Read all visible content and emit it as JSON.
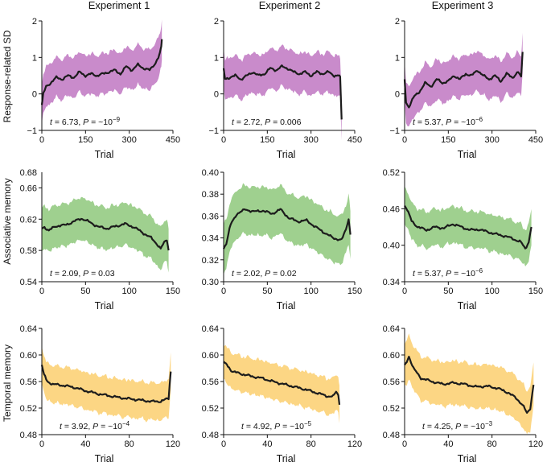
{
  "figure": {
    "column_titles": [
      "Experiment 1",
      "Experiment 2",
      "Experiment 3"
    ],
    "row_labels": [
      "Response-related SD",
      "Associative memory",
      "Temporal memory"
    ],
    "colors": {
      "row0": "#c98bcb",
      "row1": "#9fd08f",
      "row2": "#fcd684",
      "line": "#1c1c1c"
    }
  },
  "chart_data": [
    {
      "id": "p00",
      "type": "area",
      "row": 0,
      "col": 0,
      "xlabel": "Trial",
      "ylabel": "Response-related SD",
      "xlim": [
        0,
        450
      ],
      "ylim": [
        -1,
        2
      ],
      "xticks": [
        0,
        150,
        300,
        450
      ],
      "xtick_labels": [
        "0",
        "150",
        "300",
        "450"
      ],
      "yticks": [
        -1,
        0,
        1,
        2
      ],
      "ytick_labels": [
        "−1",
        "0",
        "1",
        "2"
      ],
      "stat": {
        "t_label": "t",
        "t_value": "= 6.73,",
        "p_label": "P",
        "p_value": "= ~10",
        "p_exp": "−9"
      },
      "series": {
        "name": "mean",
        "x": [
          0,
          5,
          15,
          30,
          50,
          70,
          90,
          110,
          130,
          150,
          170,
          190,
          210,
          230,
          250,
          270,
          290,
          310,
          330,
          350,
          370,
          390,
          400,
          405,
          410,
          412
        ],
        "y": [
          -0.3,
          0.0,
          0.2,
          0.3,
          0.45,
          0.4,
          0.5,
          0.45,
          0.6,
          0.5,
          0.55,
          0.5,
          0.55,
          0.6,
          0.65,
          0.55,
          0.75,
          0.65,
          0.8,
          0.7,
          0.65,
          0.85,
          1.0,
          1.1,
          1.3,
          1.5
        ],
        "band": 0.55
      }
    },
    {
      "id": "p01",
      "type": "area",
      "row": 0,
      "col": 1,
      "xlabel": "Trial",
      "ylabel": "",
      "xlim": [
        0,
        450
      ],
      "ylim": [
        -1,
        2
      ],
      "xticks": [
        0,
        150,
        300,
        450
      ],
      "xtick_labels": [
        "0",
        "150",
        "300",
        "450"
      ],
      "yticks": [
        -1,
        0,
        1,
        2
      ],
      "ytick_labels": [
        "−1",
        "0",
        "1",
        "2"
      ],
      "stat": {
        "t_label": "t",
        "t_value": "= 2.72,",
        "p_label": "P",
        "p_value": "= 0.006",
        "p_exp": ""
      },
      "series": {
        "name": "mean",
        "x": [
          0,
          5,
          20,
          40,
          60,
          80,
          100,
          120,
          140,
          160,
          180,
          200,
          220,
          240,
          260,
          280,
          300,
          320,
          340,
          360,
          380,
          395,
          400,
          405
        ],
        "y": [
          0.7,
          0.4,
          0.45,
          0.5,
          0.4,
          0.5,
          0.6,
          0.5,
          0.55,
          0.7,
          0.65,
          0.75,
          0.7,
          0.6,
          0.55,
          0.6,
          0.5,
          0.6,
          0.55,
          0.6,
          0.5,
          0.5,
          0.45,
          -0.7
        ],
        "band": 0.55
      }
    },
    {
      "id": "p02",
      "type": "area",
      "row": 0,
      "col": 2,
      "xlabel": "Trial",
      "ylabel": "",
      "xlim": [
        0,
        450
      ],
      "ylim": [
        -1,
        2
      ],
      "xticks": [
        0,
        150,
        300,
        450
      ],
      "xtick_labels": [
        "0",
        "150",
        "300",
        "450"
      ],
      "yticks": [
        -1,
        0,
        1,
        2
      ],
      "ytick_labels": [
        "−1",
        "0",
        "1",
        "2"
      ],
      "stat": {
        "t_label": "t",
        "t_value": "= 5.37,",
        "p_label": "P",
        "p_value": "= ~10",
        "p_exp": "−6"
      },
      "series": {
        "name": "mean",
        "x": [
          0,
          5,
          15,
          30,
          50,
          70,
          90,
          110,
          130,
          150,
          170,
          190,
          210,
          230,
          250,
          270,
          290,
          310,
          330,
          350,
          370,
          390,
          400,
          405
        ],
        "y": [
          0.4,
          -0.25,
          -0.35,
          -0.1,
          0.05,
          0.3,
          0.2,
          0.4,
          0.3,
          0.35,
          0.5,
          0.4,
          0.55,
          0.5,
          0.65,
          0.5,
          0.4,
          0.5,
          0.35,
          0.55,
          0.45,
          0.6,
          0.45,
          1.15
        ],
        "band": 0.55
      }
    },
    {
      "id": "p10",
      "type": "area",
      "row": 1,
      "col": 0,
      "xlabel": "Trial",
      "ylabel": "Associative memory",
      "xlim": [
        0,
        150
      ],
      "ylim": [
        0.54,
        0.68
      ],
      "xticks": [
        0,
        50,
        100,
        150
      ],
      "xtick_labels": [
        "0",
        "50",
        "100",
        "150"
      ],
      "yticks": [
        0.54,
        0.58,
        0.62,
        0.66
      ],
      "ytick_labels": [
        "0.54",
        "0.58",
        "0.62",
        "0.66"
      ],
      "top_label": "0.68",
      "stat": {
        "t_label": "t",
        "t_value": "= 2.09,",
        "p_label": "P",
        "p_value": "= 0.03",
        "p_exp": ""
      },
      "series": {
        "name": "mean",
        "x": [
          0,
          3,
          8,
          15,
          25,
          35,
          45,
          55,
          65,
          75,
          85,
          95,
          105,
          115,
          125,
          132,
          136,
          140,
          143,
          145
        ],
        "y": [
          0.608,
          0.61,
          0.605,
          0.611,
          0.612,
          0.616,
          0.621,
          0.616,
          0.61,
          0.608,
          0.611,
          0.614,
          0.61,
          0.603,
          0.596,
          0.588,
          0.582,
          0.59,
          0.594,
          0.58
        ],
        "band": 0.027
      }
    },
    {
      "id": "p11",
      "type": "area",
      "row": 1,
      "col": 1,
      "xlabel": "Trial",
      "ylabel": "",
      "xlim": [
        0,
        150
      ],
      "ylim": [
        0.3,
        0.4
      ],
      "xticks": [
        0,
        50,
        100,
        150
      ],
      "xtick_labels": [
        "0",
        "50",
        "100",
        "150"
      ],
      "yticks": [
        0.3,
        0.32,
        0.34,
        0.36,
        0.38,
        0.4
      ],
      "ytick_labels": [
        "0.30",
        "0.32",
        "0.34",
        "0.36",
        "0.38",
        "0.40"
      ],
      "stat": {
        "t_label": "t",
        "t_value": "= 2.02,",
        "p_label": "P",
        "p_value": "= 0.02",
        "p_exp": ""
      },
      "series": {
        "name": "mean",
        "x": [
          0,
          3,
          8,
          15,
          25,
          35,
          45,
          55,
          65,
          75,
          85,
          95,
          105,
          115,
          125,
          135,
          140,
          143,
          145
        ],
        "y": [
          0.33,
          0.335,
          0.352,
          0.362,
          0.366,
          0.364,
          0.365,
          0.362,
          0.366,
          0.358,
          0.355,
          0.356,
          0.35,
          0.345,
          0.34,
          0.338,
          0.348,
          0.358,
          0.343
        ],
        "band": 0.022
      }
    },
    {
      "id": "p12",
      "type": "area",
      "row": 1,
      "col": 2,
      "xlabel": "Trial",
      "ylabel": "",
      "xlim": [
        0,
        150
      ],
      "ylim": [
        0.34,
        0.52
      ],
      "xticks": [
        0,
        50,
        100,
        150
      ],
      "xtick_labels": [
        "0",
        "50",
        "100",
        "150"
      ],
      "yticks": [
        0.34,
        0.4,
        0.46,
        0.52
      ],
      "ytick_labels": [
        "0.34",
        "0.40",
        "0.46",
        "0.52"
      ],
      "stat": {
        "t_label": "t",
        "t_value": "= 5.37,",
        "p_label": "P",
        "p_value": "= ~10",
        "p_exp": "−6"
      },
      "series": {
        "name": "mean",
        "x": [
          0,
          3,
          8,
          15,
          25,
          35,
          45,
          55,
          65,
          75,
          85,
          95,
          105,
          115,
          125,
          133,
          138,
          142,
          145
        ],
        "y": [
          0.465,
          0.458,
          0.44,
          0.43,
          0.425,
          0.43,
          0.428,
          0.435,
          0.43,
          0.425,
          0.426,
          0.422,
          0.418,
          0.415,
          0.41,
          0.405,
          0.395,
          0.405,
          0.43
        ],
        "band": 0.03
      }
    },
    {
      "id": "p20",
      "type": "area",
      "row": 2,
      "col": 0,
      "xlabel": "Trial",
      "ylabel": "Temporal memory",
      "xlim": [
        0,
        120
      ],
      "ylim": [
        0.48,
        0.64
      ],
      "xticks": [
        0,
        40,
        80,
        120
      ],
      "xtick_labels": [
        "0",
        "40",
        "80",
        "120"
      ],
      "yticks": [
        0.48,
        0.52,
        0.56,
        0.6,
        0.64
      ],
      "ytick_labels": [
        "0.48",
        "0.52",
        "0.56",
        "0.60",
        "0.64"
      ],
      "stat": {
        "t_label": "t",
        "t_value": "= 3.92,",
        "p_label": "P",
        "p_value": "= ~10",
        "p_exp": "−4"
      },
      "series": {
        "name": "mean",
        "x": [
          0,
          2,
          5,
          10,
          20,
          30,
          40,
          50,
          60,
          70,
          80,
          90,
          100,
          108,
          112,
          116,
          118
        ],
        "y": [
          0.585,
          0.57,
          0.56,
          0.556,
          0.554,
          0.551,
          0.546,
          0.542,
          0.539,
          0.536,
          0.534,
          0.532,
          0.53,
          0.53,
          0.532,
          0.535,
          0.575
        ],
        "band": 0.028
      }
    },
    {
      "id": "p21",
      "type": "area",
      "row": 2,
      "col": 1,
      "xlabel": "Trial",
      "ylabel": "",
      "xlim": [
        0,
        120
      ],
      "ylim": [
        0.48,
        0.64
      ],
      "xticks": [
        0,
        40,
        80,
        120
      ],
      "xtick_labels": [
        "0",
        "40",
        "80",
        "120"
      ],
      "yticks": [
        0.48,
        0.52,
        0.56,
        0.6,
        0.64
      ],
      "ytick_labels": [
        "0.48",
        "0.52",
        "0.56",
        "0.60",
        "0.64"
      ],
      "stat": {
        "t_label": "t",
        "t_value": "= 4.92,",
        "p_label": "P",
        "p_value": "= ~10",
        "p_exp": "−5"
      },
      "series": {
        "name": "mean",
        "x": [
          0,
          3,
          8,
          15,
          25,
          35,
          45,
          55,
          65,
          75,
          85,
          95,
          100,
          103,
          105,
          106
        ],
        "y": [
          0.59,
          0.585,
          0.575,
          0.572,
          0.568,
          0.565,
          0.56,
          0.556,
          0.552,
          0.548,
          0.543,
          0.538,
          0.537,
          0.545,
          0.54,
          0.525
        ],
        "band": 0.027
      }
    },
    {
      "id": "p22",
      "type": "area",
      "row": 2,
      "col": 2,
      "xlabel": "Trial",
      "ylabel": "",
      "xlim": [
        0,
        120
      ],
      "ylim": [
        0.48,
        0.64
      ],
      "xticks": [
        0,
        40,
        80,
        120
      ],
      "xtick_labels": [
        "0",
        "40",
        "80",
        "120"
      ],
      "yticks": [
        0.48,
        0.52,
        0.56,
        0.6,
        0.64
      ],
      "ytick_labels": [
        "0.48",
        "0.52",
        "0.56",
        "0.60",
        "0.64"
      ],
      "stat": {
        "t_label": "t",
        "t_value": "= 4.25,",
        "p_label": "P",
        "p_value": "= ~10",
        "p_exp": "−3"
      },
      "series": {
        "name": "mean",
        "x": [
          0,
          2,
          4,
          8,
          15,
          25,
          35,
          45,
          55,
          65,
          75,
          85,
          95,
          102,
          108,
          112,
          115,
          118
        ],
        "y": [
          0.585,
          0.59,
          0.598,
          0.58,
          0.565,
          0.56,
          0.556,
          0.558,
          0.556,
          0.552,
          0.553,
          0.55,
          0.543,
          0.535,
          0.525,
          0.512,
          0.52,
          0.555
        ],
        "band": 0.033
      }
    }
  ]
}
